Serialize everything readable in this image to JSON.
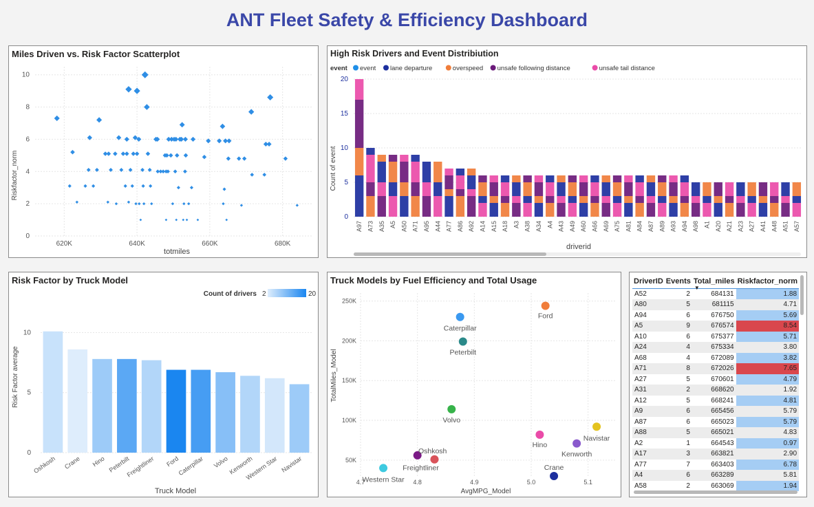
{
  "dashboard_title": "ANT Fleet Safety & Efficiency Dashboard",
  "colors": {
    "title": "#3a47a8",
    "scatter_point": "#2f8ee5",
    "highlight_row": "#d9474d",
    "normal_row": "#a5cdf4"
  },
  "scatter": {
    "title": "Miles Driven vs. Risk Factor Scatterplot",
    "xlabel": "totmiles",
    "ylabel": "Riskfactor_norm",
    "xticks": [
      "620K",
      "640K",
      "660K",
      "680K"
    ],
    "yticks": [
      "0",
      "2",
      "4",
      "6",
      "8",
      "10"
    ]
  },
  "ribbon": {
    "title": "High Risk Drivers and Event Distribiution",
    "legend_title": "event",
    "legend": [
      {
        "label": "event",
        "color": "#1f8fe8"
      },
      {
        "label": "lane departure",
        "color": "#1c2f9e"
      },
      {
        "label": "overspeed",
        "color": "#f07d3a"
      },
      {
        "label": "unsafe following distance",
        "color": "#6b1a7a"
      },
      {
        "label": "unsafe tail distance",
        "color": "#ea4ba8"
      }
    ],
    "ylabel": "Count of event",
    "xlabel": "driverid",
    "yticks": [
      "0",
      "5",
      "10",
      "15",
      "20"
    ]
  },
  "truck_bar": {
    "title": "Risk Factor by Truck Model",
    "legend_title": "Count of drivers",
    "legend_min": "2",
    "legend_max": "20",
    "xlabel": "Truck Model",
    "ylabel": "Risk Factor average",
    "yticks": [
      "0",
      "5",
      "10"
    ]
  },
  "fuel": {
    "title": "Truck Models by Fuel Efficiency and Total Usage",
    "xlabel": "AvgMPG_Model",
    "ylabel": "TotalMiles_Model",
    "xticks": [
      "4.7",
      "4.8",
      "4.9",
      "5.0",
      "5.1"
    ],
    "yticks": [
      "50K",
      "100K",
      "150K",
      "200K",
      "250K"
    ]
  },
  "table": {
    "columns": [
      "DriverID",
      "Events",
      "Total_miles",
      "Riskfactor_norm"
    ],
    "rows": [
      [
        "A52",
        "2",
        "684131",
        "1.88"
      ],
      [
        "A80",
        "5",
        "681115",
        "4.71"
      ],
      [
        "A94",
        "6",
        "676750",
        "5.69"
      ],
      [
        "A5",
        "9",
        "676574",
        "8.54"
      ],
      [
        "A10",
        "6",
        "675377",
        "5.71"
      ],
      [
        "A24",
        "4",
        "675334",
        "3.80"
      ],
      [
        "A68",
        "4",
        "672089",
        "3.82"
      ],
      [
        "A71",
        "8",
        "672026",
        "7.65"
      ],
      [
        "A27",
        "5",
        "670601",
        "4.79"
      ],
      [
        "A31",
        "2",
        "668620",
        "1.92"
      ],
      [
        "A12",
        "5",
        "668241",
        "4.81"
      ],
      [
        "A9",
        "6",
        "665456",
        "5.79"
      ],
      [
        "A87",
        "6",
        "665023",
        "5.79"
      ],
      [
        "A88",
        "5",
        "665021",
        "4.83"
      ],
      [
        "A2",
        "1",
        "664543",
        "0.97"
      ],
      [
        "A17",
        "3",
        "663821",
        "2.90"
      ],
      [
        "A77",
        "7",
        "663403",
        "6.78"
      ],
      [
        "A4",
        "6",
        "663289",
        "5.81"
      ],
      [
        "A58",
        "2",
        "663069",
        "1.94"
      ]
    ],
    "highlight_rows": [
      3,
      7
    ]
  },
  "chart_data": [
    {
      "type": "scatter",
      "title": "Miles Driven vs. Risk Factor Scatterplot",
      "xlabel": "totmiles",
      "ylabel": "Riskfactor_norm",
      "xlim": [
        612000,
        688000
      ],
      "ylim": [
        0,
        10.5
      ],
      "points": [
        [
          618000,
          7.3
        ],
        [
          621500,
          3.1
        ],
        [
          622300,
          5.2
        ],
        [
          623500,
          2.1
        ],
        [
          625800,
          3.1
        ],
        [
          626700,
          4.1
        ],
        [
          627000,
          6.1
        ],
        [
          628000,
          3.1
        ],
        [
          629000,
          4.1
        ],
        [
          629600,
          7.2
        ],
        [
          631300,
          5.1
        ],
        [
          632000,
          2.1
        ],
        [
          632200,
          5.1
        ],
        [
          632800,
          4.1
        ],
        [
          634000,
          5.1
        ],
        [
          634300,
          2.0
        ],
        [
          635000,
          6.1
        ],
        [
          635700,
          4.1
        ],
        [
          636200,
          5.1
        ],
        [
          636800,
          3.1
        ],
        [
          637200,
          5.1
        ],
        [
          637200,
          6.0
        ],
        [
          637700,
          9.1
        ],
        [
          637700,
          2.1
        ],
        [
          638200,
          4.1
        ],
        [
          638700,
          3.1
        ],
        [
          639000,
          5.1
        ],
        [
          639500,
          6.1
        ],
        [
          639700,
          2.0
        ],
        [
          640000,
          9.0
        ],
        [
          640000,
          5.1
        ],
        [
          640500,
          6.0
        ],
        [
          640600,
          2.0
        ],
        [
          641000,
          1.0
        ],
        [
          641500,
          4.1
        ],
        [
          641700,
          3.1
        ],
        [
          641900,
          2.0
        ],
        [
          642200,
          10.0
        ],
        [
          642700,
          8.0
        ],
        [
          643000,
          5.1
        ],
        [
          643500,
          4.1
        ],
        [
          643700,
          3.1
        ],
        [
          644000,
          2.0
        ],
        [
          645200,
          6.0
        ],
        [
          645600,
          6.0
        ],
        [
          645700,
          4.0
        ],
        [
          646500,
          4.0
        ],
        [
          647200,
          4.0
        ],
        [
          647700,
          5.0
        ],
        [
          648000,
          4.0
        ],
        [
          648000,
          1.0
        ],
        [
          648200,
          5.0
        ],
        [
          648500,
          4.0
        ],
        [
          648700,
          6.0
        ],
        [
          649300,
          5.0
        ],
        [
          649500,
          6.0
        ],
        [
          649800,
          2.0
        ],
        [
          650200,
          6.0
        ],
        [
          650500,
          4.0
        ],
        [
          650700,
          6.0
        ],
        [
          650800,
          1.0
        ],
        [
          651000,
          5.0
        ],
        [
          651400,
          3.0
        ],
        [
          651800,
          6.0
        ],
        [
          652200,
          6.0
        ],
        [
          652400,
          6.9
        ],
        [
          652700,
          1.0
        ],
        [
          652900,
          2.0
        ],
        [
          653200,
          4.0
        ],
        [
          653300,
          6.0
        ],
        [
          653400,
          5.0
        ],
        [
          653700,
          1.0
        ],
        [
          654200,
          2.0
        ],
        [
          655000,
          3.0
        ],
        [
          655400,
          6.0
        ],
        [
          656700,
          1.0
        ],
        [
          658500,
          4.9
        ],
        [
          659600,
          5.9
        ],
        [
          662600,
          5.9
        ],
        [
          663500,
          6.8
        ],
        [
          663700,
          2.0
        ],
        [
          664000,
          2.9
        ],
        [
          664300,
          5.9
        ],
        [
          664600,
          1.0
        ],
        [
          665100,
          4.8
        ],
        [
          665300,
          5.9
        ],
        [
          668000,
          4.8
        ],
        [
          668700,
          1.9
        ],
        [
          669500,
          4.8
        ],
        [
          671400,
          7.7
        ],
        [
          671600,
          3.8
        ],
        [
          675000,
          3.8
        ],
        [
          675400,
          5.7
        ],
        [
          676300,
          5.7
        ],
        [
          676600,
          8.6
        ],
        [
          680800,
          4.8
        ],
        [
          684000,
          1.9
        ]
      ]
    },
    {
      "type": "area",
      "title": "High Risk Drivers and Event Distribiution",
      "xlabel": "driverid",
      "ylabel": "Count of event",
      "ylim": [
        0,
        20
      ],
      "categories": [
        "A97",
        "A73",
        "A35",
        "A5",
        "A50",
        "A71",
        "A95",
        "A44",
        "A77",
        "A86",
        "A92",
        "A14",
        "A15",
        "A18",
        "A3",
        "A38",
        "A34",
        "A4",
        "A43",
        "A49",
        "A60",
        "A66",
        "A69",
        "A75",
        "A81",
        "A84",
        "A87",
        "A89",
        "A93",
        "A94",
        "A98",
        "A1",
        "A20",
        "A21",
        "A23",
        "A27",
        "A41",
        "A48",
        "A51",
        "A57"
      ],
      "totals": [
        20,
        10,
        9,
        9,
        9,
        9,
        8,
        8,
        7,
        7,
        7,
        6,
        6,
        6,
        6,
        6,
        6,
        6,
        6,
        6,
        6,
        6,
        6,
        6,
        6,
        6,
        6,
        6,
        6,
        6,
        5,
        5,
        5,
        5,
        5,
        5,
        5,
        5,
        5,
        5
      ]
    },
    {
      "type": "bar",
      "title": "Risk Factor by Truck Model",
      "xlabel": "Truck Model",
      "ylabel": "Risk Factor average",
      "ylim": [
        0,
        11
      ],
      "categories": [
        "Oshkosh",
        "Crane",
        "Hino",
        "Peterbilt",
        "Freightliner",
        "Ford",
        "Caterpillar",
        "Volvo",
        "Kenworth",
        "Western Star",
        "Navistar"
      ],
      "values": [
        10.1,
        8.6,
        7.8,
        7.8,
        7.7,
        6.9,
        6.9,
        6.7,
        6.4,
        6.2,
        5.7
      ],
      "driver_counts": [
        4,
        2,
        8,
        14,
        6,
        20,
        16,
        10,
        6,
        3,
        8
      ]
    },
    {
      "type": "scatter",
      "title": "Truck Models by Fuel Efficiency and Total Usage",
      "xlabel": "AvgMPG_Model",
      "ylabel": "TotalMiles_Model",
      "xlim": [
        4.7,
        5.15
      ],
      "ylim": [
        30000,
        260000
      ],
      "points": [
        {
          "label": "Caterpillar",
          "x": 4.875,
          "y": 230000,
          "color": "#3a99f0"
        },
        {
          "label": "Ford",
          "x": 5.025,
          "y": 244000,
          "color": "#f07d3a"
        },
        {
          "label": "Peterbilt",
          "x": 4.88,
          "y": 199000,
          "color": "#2b8a8a"
        },
        {
          "label": "Volvo",
          "x": 4.86,
          "y": 114000,
          "color": "#37b34a"
        },
        {
          "label": "Hino",
          "x": 5.015,
          "y": 82000,
          "color": "#ea4ba8"
        },
        {
          "label": "Navistar",
          "x": 5.115,
          "y": 92000,
          "color": "#e4c31f"
        },
        {
          "label": "Kenworth",
          "x": 5.08,
          "y": 71000,
          "color": "#8a5acd"
        },
        {
          "label": "Oshkosh",
          "x": 4.8,
          "y": 56000,
          "color": "#7b1a86"
        },
        {
          "label": "Freightliner",
          "x": 4.83,
          "y": 51000,
          "color": "#d9535a"
        },
        {
          "label": "Western Star",
          "x": 4.74,
          "y": 40000,
          "color": "#3ecae0"
        },
        {
          "label": "Crane",
          "x": 5.04,
          "y": 30000,
          "color": "#1c2f9e"
        }
      ]
    }
  ]
}
